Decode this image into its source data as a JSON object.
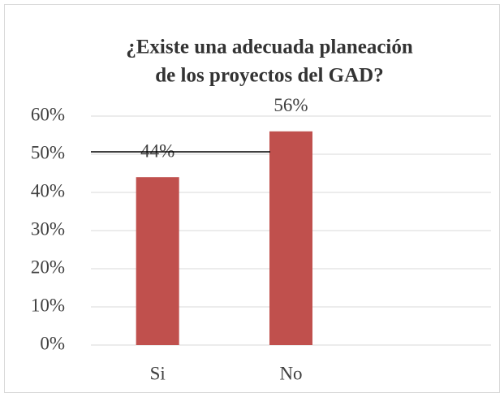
{
  "chart_data": {
    "type": "bar",
    "title": [
      "¿Existe una adecuada planeación",
      "de los proyectos del GAD?"
    ],
    "categories": [
      "Si",
      "No",
      null
    ],
    "values": [
      44,
      56,
      null
    ],
    "value_labels": [
      "44%",
      "56%",
      null
    ],
    "color": "#c0504d",
    "ylim": [
      0,
      60
    ],
    "yticks": [
      {
        "value": 0,
        "label": "0%"
      },
      {
        "value": 10,
        "label": "10%"
      },
      {
        "value": 20,
        "label": "20%"
      },
      {
        "value": 30,
        "label": "30%"
      },
      {
        "value": 40,
        "label": "40%"
      },
      {
        "value": 50,
        "label": "50%"
      },
      {
        "value": 60,
        "label": "60%"
      }
    ],
    "grid": true
  }
}
